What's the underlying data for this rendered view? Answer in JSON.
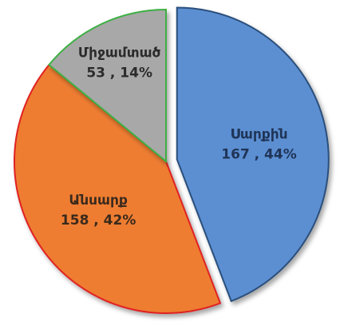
{
  "chart_data": {
    "type": "pie",
    "categories": [
      "Սարքին",
      "Անսարք",
      "Միջամտած"
    ],
    "values": [
      167,
      158,
      53
    ],
    "value_labels": [
      "167 , 44%",
      "158 , 42%",
      "53 , 14%"
    ],
    "colors": [
      "#5b8fd2",
      "#ee7d32",
      "#a8a8a8"
    ],
    "edgecolors": [
      "#2c4f7c",
      "#e02020",
      "#3cb043"
    ],
    "explode": [
      1,
      0,
      0
    ]
  }
}
